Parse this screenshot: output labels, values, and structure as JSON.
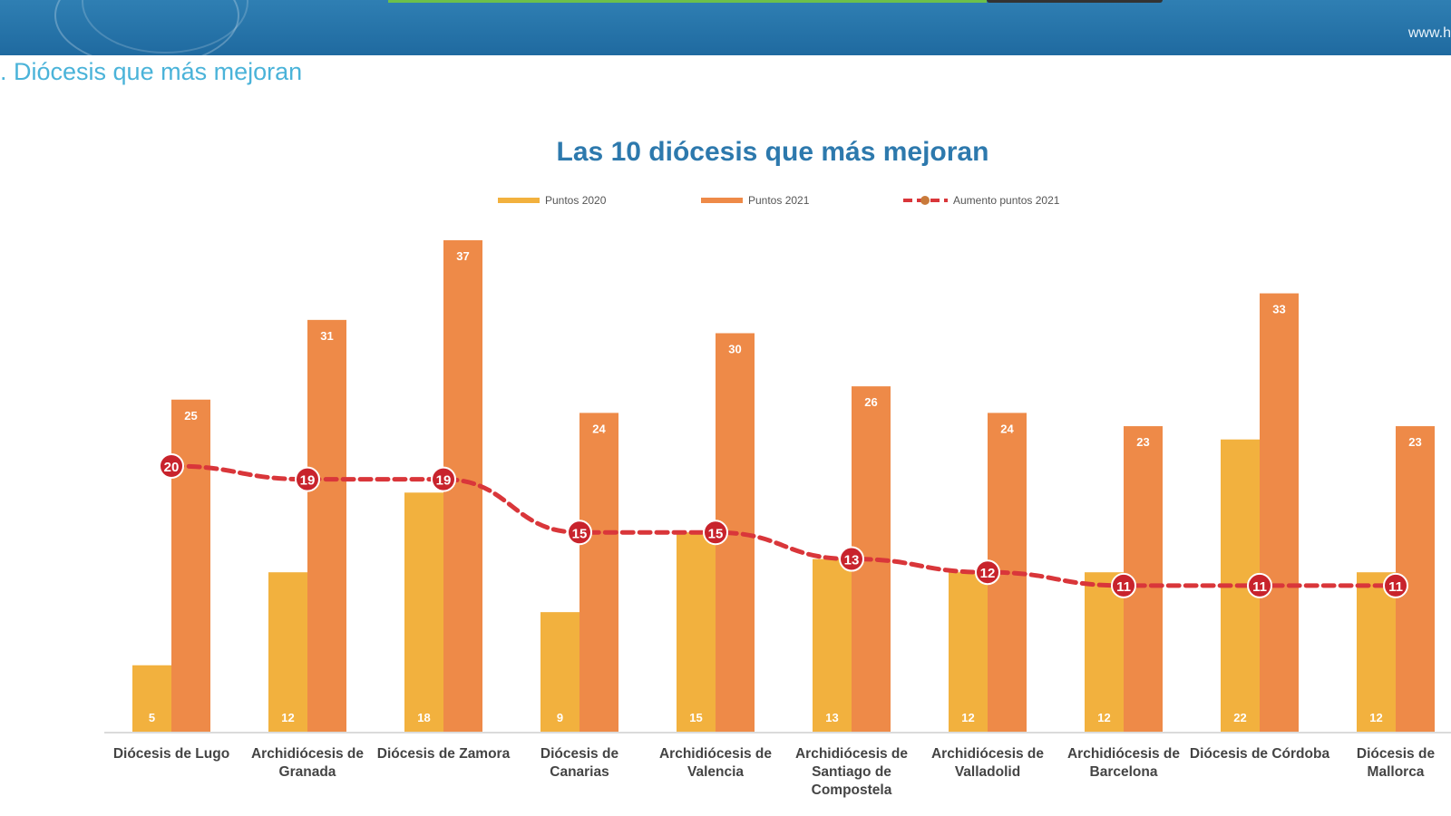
{
  "header": {
    "url_text": "www.h"
  },
  "section_title": ". Diócesis que más mejoran",
  "colors": {
    "bar2020": "#f2b13e",
    "bar2021": "#ee8a48",
    "line": "#d9363a",
    "title": "#2d79ad"
  },
  "chart_data": {
    "type": "bar",
    "title": "Las 10 diócesis que más mejoran",
    "legend_position": "top",
    "grid": false,
    "ylim": [
      0,
      37
    ],
    "categories": [
      [
        "Diócesis de Lugo"
      ],
      [
        "Archidiócesis de",
        "Granada"
      ],
      [
        "Diócesis de Zamora"
      ],
      [
        "Diócesis de",
        "Canarias"
      ],
      [
        "Archidiócesis de",
        "Valencia"
      ],
      [
        "Archidiócesis de",
        "Santiago de",
        "Compostela"
      ],
      [
        "Archidiócesis de",
        "Valladolid"
      ],
      [
        "Archidiócesis de",
        "Barcelona"
      ],
      [
        "Diócesis de Córdoba"
      ],
      [
        "Diócesis de",
        "Mallorca"
      ]
    ],
    "series": [
      {
        "name": "Puntos 2020",
        "kind": "bar",
        "values": [
          5,
          12,
          18,
          9,
          15,
          13,
          12,
          12,
          22,
          12
        ]
      },
      {
        "name": "Puntos 2021",
        "kind": "bar",
        "values": [
          25,
          31,
          37,
          24,
          30,
          26,
          24,
          23,
          33,
          23
        ]
      },
      {
        "name": "Aumento puntos 2021",
        "kind": "line",
        "values": [
          20,
          19,
          19,
          15,
          15,
          13,
          12,
          11,
          11,
          11
        ]
      }
    ]
  }
}
